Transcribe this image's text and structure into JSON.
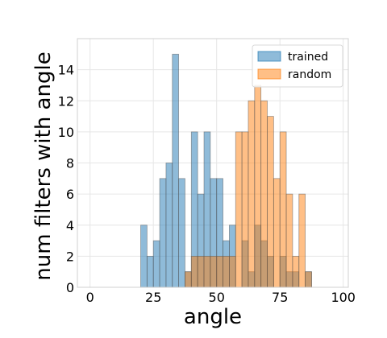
{
  "chart_data": {
    "type": "bar",
    "title": "",
    "xlabel": "angle",
    "ylabel": "num filters with angle",
    "xlim": [
      -5,
      102
    ],
    "ylim": [
      0,
      16
    ],
    "x_ticks": [
      0,
      25,
      50,
      75,
      100
    ],
    "y_ticks": [
      0,
      2,
      4,
      6,
      8,
      10,
      12,
      14
    ],
    "grid": true,
    "legend_position": "top-right",
    "bin_width": 2.5,
    "series": [
      {
        "name": "trained",
        "color": "#1f77b4",
        "bins": [
          {
            "x": 20,
            "value": 4
          },
          {
            "x": 22.5,
            "value": 2
          },
          {
            "x": 25,
            "value": 3
          },
          {
            "x": 27.5,
            "value": 7
          },
          {
            "x": 30,
            "value": 8
          },
          {
            "x": 32.5,
            "value": 15
          },
          {
            "x": 35,
            "value": 7
          },
          {
            "x": 37.5,
            "value": 1
          },
          {
            "x": 40,
            "value": 10
          },
          {
            "x": 42.5,
            "value": 6
          },
          {
            "x": 45,
            "value": 10
          },
          {
            "x": 47.5,
            "value": 7
          },
          {
            "x": 50,
            "value": 7
          },
          {
            "x": 52.5,
            "value": 3
          },
          {
            "x": 55,
            "value": 4
          },
          {
            "x": 60,
            "value": 3
          },
          {
            "x": 62.5,
            "value": 1
          },
          {
            "x": 65,
            "value": 4
          },
          {
            "x": 67.5,
            "value": 3
          },
          {
            "x": 70,
            "value": 2
          },
          {
            "x": 75,
            "value": 2
          },
          {
            "x": 77.5,
            "value": 1
          },
          {
            "x": 80,
            "value": 1
          },
          {
            "x": 85,
            "value": 1
          }
        ]
      },
      {
        "name": "random",
        "color": "#ff7f0e",
        "bins": [
          {
            "x": 37.5,
            "value": 1
          },
          {
            "x": 40,
            "value": 2
          },
          {
            "x": 42.5,
            "value": 2
          },
          {
            "x": 45,
            "value": 2
          },
          {
            "x": 47.5,
            "value": 2
          },
          {
            "x": 50,
            "value": 2
          },
          {
            "x": 52.5,
            "value": 2
          },
          {
            "x": 55,
            "value": 2
          },
          {
            "x": 57.5,
            "value": 10
          },
          {
            "x": 60,
            "value": 10
          },
          {
            "x": 62.5,
            "value": 12
          },
          {
            "x": 65,
            "value": 13
          },
          {
            "x": 67.5,
            "value": 12
          },
          {
            "x": 70,
            "value": 11
          },
          {
            "x": 72.5,
            "value": 7
          },
          {
            "x": 75,
            "value": 10
          },
          {
            "x": 77.5,
            "value": 6
          },
          {
            "x": 80,
            "value": 2
          },
          {
            "x": 82.5,
            "value": 6
          },
          {
            "x": 85,
            "value": 1
          }
        ]
      }
    ]
  }
}
